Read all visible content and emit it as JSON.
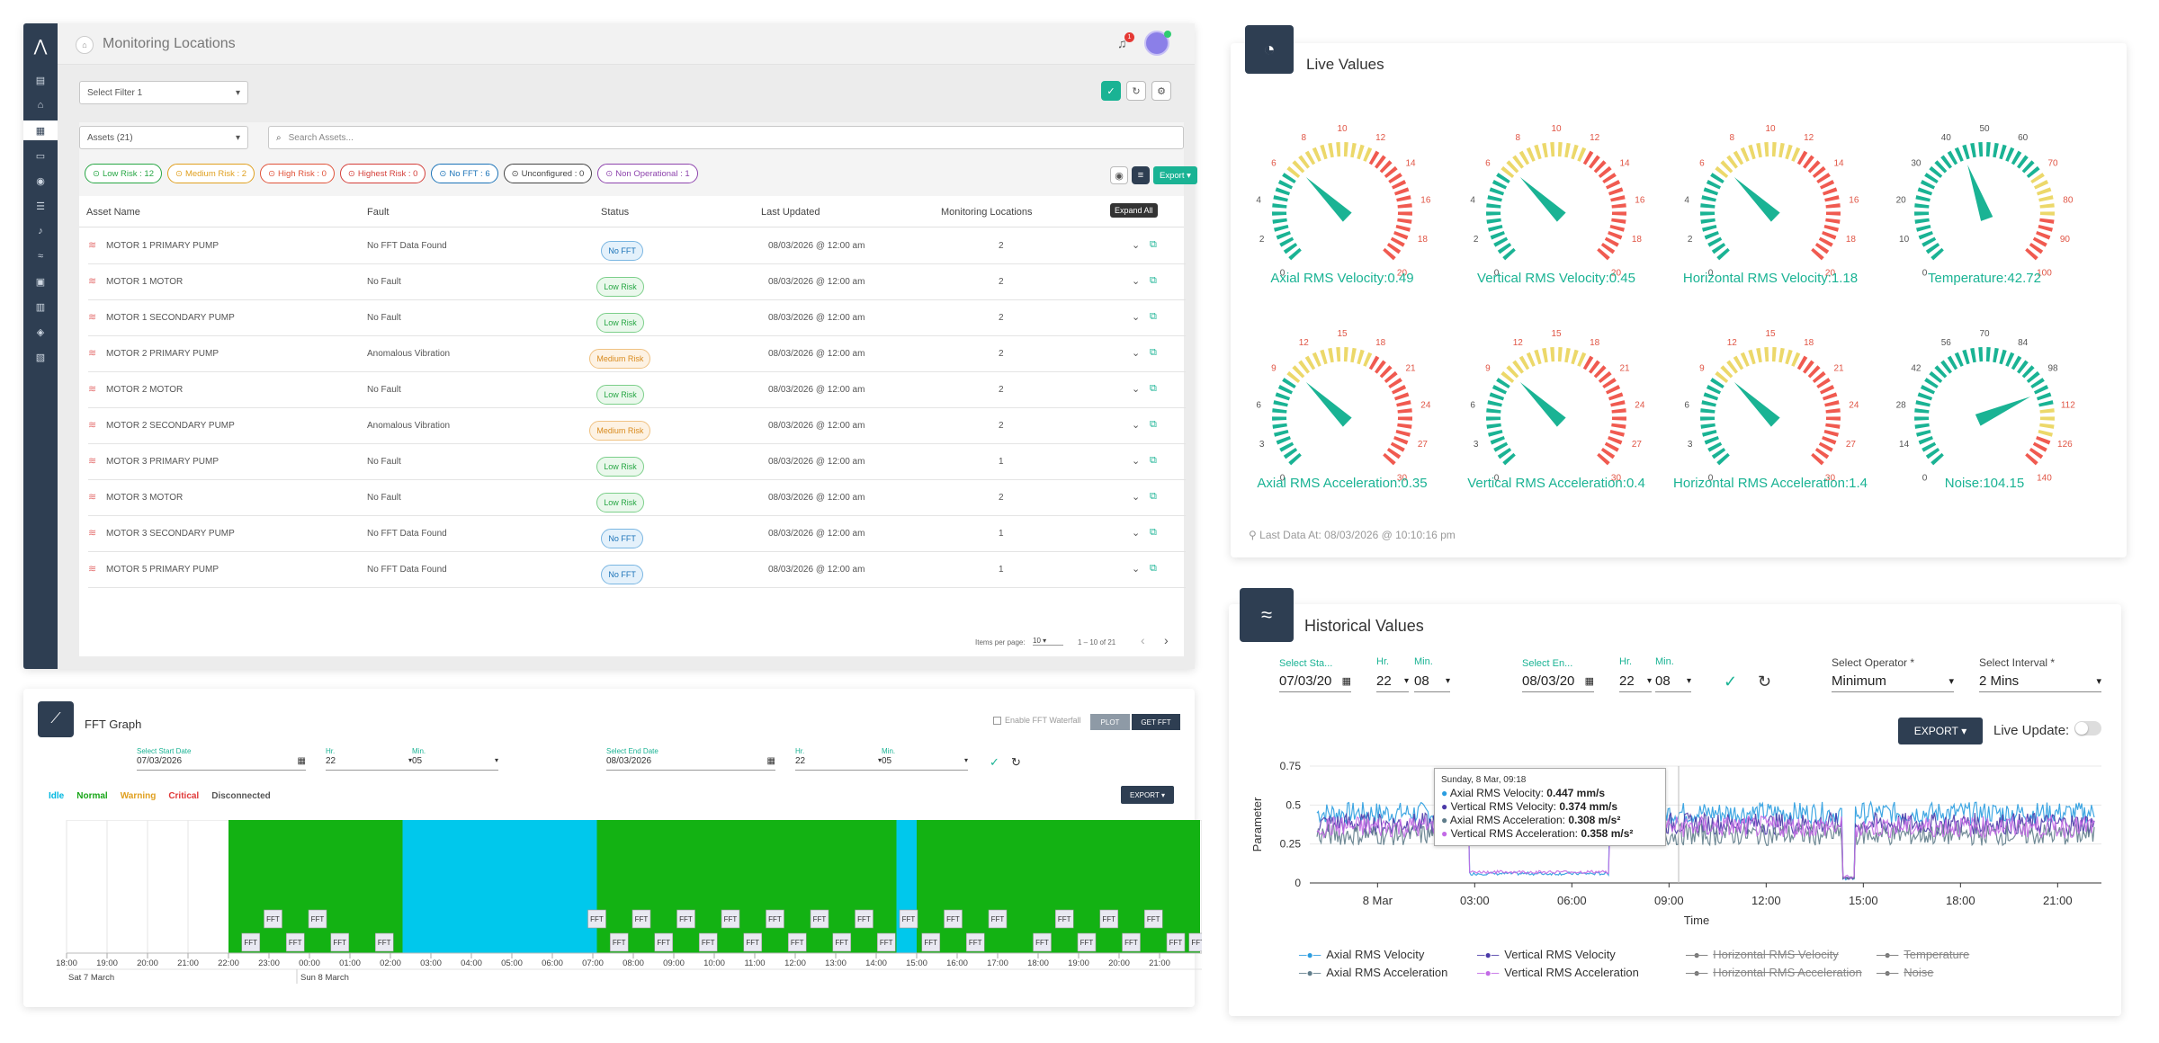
{
  "monitoring": {
    "title": "Monitoring Locations",
    "notif_count": "1",
    "filter_placeholder": "Select Filter 1",
    "assets_select": "Assets (21)",
    "search_placeholder": "Search Assets...",
    "pills": [
      {
        "label": "Low Risk : 12",
        "color": "#28a745"
      },
      {
        "label": "Medium Risk : 2",
        "color": "#e0a020"
      },
      {
        "label": "High Risk : 0",
        "color": "#e0533a"
      },
      {
        "label": "Highest Risk : 0",
        "color": "#d43f3a"
      },
      {
        "label": "No FFT : 6",
        "color": "#1b73b8"
      },
      {
        "label": "Unconfigured : 0",
        "color": "#444444"
      },
      {
        "label": "Non Operational : 1",
        "color": "#8e44ad"
      }
    ],
    "export_label": "Export",
    "expand_all": "Expand All",
    "columns": [
      "Asset Name",
      "Fault",
      "Status",
      "Last Updated",
      "Monitoring Locations"
    ],
    "rows": [
      {
        "name": "MOTOR 1 PRIMARY PUMP",
        "fault": "No FFT Data Found",
        "status": "No FFT",
        "cls": "b-nofft",
        "updated": "08/03/2026 @ 12:00 am",
        "locations": "2"
      },
      {
        "name": "MOTOR 1 MOTOR",
        "fault": "No Fault",
        "status": "Low Risk",
        "cls": "b-low",
        "updated": "08/03/2026 @ 12:00 am",
        "locations": "2"
      },
      {
        "name": "MOTOR 1 SECONDARY PUMP",
        "fault": "No Fault",
        "status": "Low Risk",
        "cls": "b-low",
        "updated": "08/03/2026 @ 12:00 am",
        "locations": "2"
      },
      {
        "name": "MOTOR 2 PRIMARY PUMP",
        "fault": "Anomalous Vibration",
        "status": "Medium Risk",
        "cls": "b-med",
        "updated": "08/03/2026 @ 12:00 am",
        "locations": "2"
      },
      {
        "name": "MOTOR 2 MOTOR",
        "fault": "No Fault",
        "status": "Low Risk",
        "cls": "b-low",
        "updated": "08/03/2026 @ 12:00 am",
        "locations": "2"
      },
      {
        "name": "MOTOR 2 SECONDARY PUMP",
        "fault": "Anomalous Vibration",
        "status": "Medium Risk",
        "cls": "b-med",
        "updated": "08/03/2026 @ 12:00 am",
        "locations": "2"
      },
      {
        "name": "MOTOR 3 PRIMARY PUMP",
        "fault": "No Fault",
        "status": "Low Risk",
        "cls": "b-low",
        "updated": "08/03/2026 @ 12:00 am",
        "locations": "1"
      },
      {
        "name": "MOTOR 3 MOTOR",
        "fault": "No Fault",
        "status": "Low Risk",
        "cls": "b-low",
        "updated": "08/03/2026 @ 12:00 am",
        "locations": "2"
      },
      {
        "name": "MOTOR 3 SECONDARY PUMP",
        "fault": "No FFT Data Found",
        "status": "No FFT",
        "cls": "b-nofft",
        "updated": "08/03/2026 @ 12:00 am",
        "locations": "1"
      },
      {
        "name": "MOTOR 5 PRIMARY PUMP",
        "fault": "No FFT Data Found",
        "status": "No FFT",
        "cls": "b-nofft",
        "updated": "08/03/2026 @ 12:00 am",
        "locations": "1"
      }
    ],
    "items_per_page_label": "Items per page:",
    "items_per_page": "10",
    "range": "1 – 10 of 21"
  },
  "fft": {
    "title": "FFT Graph",
    "waterfall_label": "Enable FFT Waterfall",
    "plot_label": "PLOT",
    "get_fft_label": "GET FFT",
    "start_date_label": "Select Start Date",
    "start_date": "07/03/2026",
    "start_hr": "22",
    "start_min": "05",
    "end_date_label": "Select End Date",
    "end_date": "08/03/2026",
    "end_hr": "22",
    "end_min": "05",
    "hr_label": "Hr.",
    "min_label": "Min.",
    "export_label": "EXPORT",
    "legend": [
      {
        "label": "Idle",
        "color": "#00b7e0"
      },
      {
        "label": "Normal",
        "color": "#19a619"
      },
      {
        "label": "Warning",
        "color": "#e0a020"
      },
      {
        "label": "Critical",
        "color": "#e03a3a"
      },
      {
        "label": "Disconnected",
        "color": "#555555"
      }
    ],
    "marker_label": "FFT",
    "axis_times": [
      "18:00",
      "19:00",
      "20:00",
      "21:00",
      "22:00",
      "23:00",
      "00:00",
      "01:00",
      "02:00",
      "03:00",
      "04:00",
      "05:00",
      "06:00",
      "07:00",
      "08:00",
      "09:00",
      "10:00",
      "11:00",
      "12:00",
      "13:00",
      "14:00",
      "15:00",
      "16:00",
      "17:00",
      "18:00",
      "19:00",
      "20:00",
      "21:00"
    ],
    "date_left": "Sat 7 March",
    "date_right": "Sun 8 March"
  },
  "live": {
    "title": "Live Values",
    "last_data": "Last Data At: 08/03/2026 @ 10:10:16 pm",
    "gauges": [
      {
        "label": "Axial RMS Velocity:0.49",
        "value": 0.49,
        "max": 20,
        "ticks": [
          0,
          2,
          4,
          6,
          8,
          10,
          12,
          14,
          16,
          18,
          20
        ],
        "yellow": 0.3,
        "red": 0.6
      },
      {
        "label": "Vertical RMS Velocity:0.45",
        "value": 0.45,
        "max": 20,
        "ticks": [
          0,
          2,
          4,
          6,
          8,
          10,
          12,
          14,
          16,
          18,
          20
        ],
        "yellow": 0.3,
        "red": 0.6
      },
      {
        "label": "Horizontal RMS Velocity:1.18",
        "value": 1.18,
        "max": 20,
        "ticks": [
          0,
          2,
          4,
          6,
          8,
          10,
          12,
          14,
          16,
          18,
          20
        ],
        "yellow": 0.3,
        "red": 0.6
      },
      {
        "label": "Temperature:42.72",
        "value": 42.72,
        "max": 100,
        "ticks": [
          0,
          10,
          20,
          30,
          40,
          50,
          60,
          70,
          80,
          90,
          100
        ],
        "yellow": 0.7,
        "red": 0.85
      },
      {
        "label": "Axial RMS Acceleration:0.35",
        "value": 0.35,
        "max": 30,
        "ticks": [
          0,
          3,
          6,
          9,
          12,
          15,
          18,
          21,
          24,
          27,
          30
        ],
        "yellow": 0.3,
        "red": 0.6
      },
      {
        "label": "Vertical RMS Acceleration:0.4",
        "value": 0.4,
        "max": 30,
        "ticks": [
          0,
          3,
          6,
          9,
          12,
          15,
          18,
          21,
          24,
          27,
          30
        ],
        "yellow": 0.3,
        "red": 0.6
      },
      {
        "label": "Horizontal RMS Acceleration:1.4",
        "value": 1.4,
        "max": 30,
        "ticks": [
          0,
          3,
          6,
          9,
          12,
          15,
          18,
          21,
          24,
          27,
          30
        ],
        "yellow": 0.3,
        "red": 0.6
      },
      {
        "label": "Noise:104.15",
        "value": 104.15,
        "max": 140,
        "ticks": [
          0,
          14,
          28,
          42,
          56,
          70,
          84,
          98,
          112,
          126,
          140
        ],
        "yellow": 0.8,
        "red": 0.9
      }
    ],
    "colors": {
      "green": "#1ab394",
      "yellow": "#ecd86a",
      "red": "#f05a50"
    }
  },
  "historical": {
    "title": "Historical Values",
    "start_label": "Select Sta...",
    "start_date": "07/03/20",
    "hr_label": "Hr.",
    "min_label": "Min.",
    "start_hr": "22",
    "start_min": "08",
    "end_label": "Select En...",
    "end_date": "08/03/20",
    "end_hr": "22",
    "end_min": "08",
    "operator_label": "Select Operator *",
    "operator": "Minimum",
    "interval_label": "Select Interval *",
    "interval": "2 Mins",
    "export_label": "EXPORT",
    "live_update_label": "Live Update:",
    "tooltip": {
      "date": "Sunday, 8 Mar, 09:18",
      "lines": [
        {
          "name": "Axial RMS Velocity: ",
          "value": "0.447 mm/s",
          "color": "#2b9de0"
        },
        {
          "name": "Vertical RMS Velocity: ",
          "value": "0.374 mm/s",
          "color": "#4b3aa8"
        },
        {
          "name": "Axial RMS Acceleration: ",
          "value": "0.308 m/s²",
          "color": "#607d8b"
        },
        {
          "name": "Vertical RMS Acceleration: ",
          "value": "0.358 m/s²",
          "color": "#c36be6"
        }
      ]
    },
    "legend": [
      {
        "label": "Axial RMS Velocity",
        "color": "#2b9de0",
        "off": false
      },
      {
        "label": "Vertical RMS Velocity",
        "color": "#4b3aa8",
        "off": false
      },
      {
        "label": "Horizontal RMS Velocity",
        "color": "#777777",
        "off": true
      },
      {
        "label": "Temperature",
        "color": "#777777",
        "off": true
      },
      {
        "label": "Axial RMS Acceleration",
        "color": "#607d8b",
        "off": false
      },
      {
        "label": "Vertical RMS Acceleration",
        "color": "#c36be6",
        "off": false
      },
      {
        "label": "Horizontal RMS Acceleration",
        "color": "#777777",
        "off": true
      },
      {
        "label": "Noise",
        "color": "#777777",
        "off": true
      }
    ]
  },
  "chart_data": {
    "type": "line",
    "title": "",
    "xlabel": "Time",
    "ylabel": "Parameter",
    "ylim": [
      0,
      0.75
    ],
    "yticks": [
      "0",
      "0.25",
      "0.5",
      "0.75"
    ],
    "xticks": [
      "8 Mar",
      "03:00",
      "06:00",
      "09:00",
      "12:00",
      "15:00",
      "18:00",
      "21:00"
    ],
    "x_range": [
      "2026-03-07 22:08",
      "2026-03-08 22:08"
    ],
    "grid": true,
    "series": [
      {
        "name": "Axial RMS Velocity",
        "typical": 0.45,
        "color": "#2b9de0"
      },
      {
        "name": "Vertical RMS Velocity",
        "typical": 0.38,
        "color": "#4b3aa8"
      },
      {
        "name": "Axial RMS Acceleration",
        "typical": 0.31,
        "color": "#607d8b"
      },
      {
        "name": "Vertical RMS Acceleration",
        "typical": 0.36,
        "color": "#c36be6"
      }
    ],
    "dips": [
      {
        "from": "02:50",
        "to": "07:10",
        "value": 0.05
      },
      {
        "from": "14:20",
        "to": "14:45",
        "value": 0.02
      }
    ],
    "tooltip_time": "09:18"
  }
}
